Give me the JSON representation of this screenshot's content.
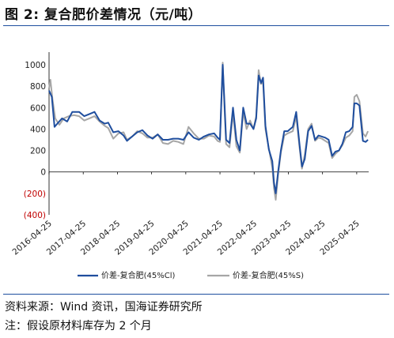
{
  "figure": {
    "title": "图 2:  复合肥价差情况（元/吨）",
    "source": "资料来源：Wind 资讯，国海证券研究所",
    "note": "注：假设原材料库存为 2 个月"
  },
  "colors": {
    "series1": "#1f4e9e",
    "series2": "#a6a6a6",
    "negative_tick": "#c00000",
    "rule": "#1d4e9e"
  },
  "chart_data": {
    "type": "line",
    "title": "",
    "xlabel": "",
    "ylabel": "",
    "ylim": [
      -400,
      1000
    ],
    "yticks": [
      {
        "value": 1000,
        "label": "1000"
      },
      {
        "value": 800,
        "label": "800"
      },
      {
        "value": 600,
        "label": "600"
      },
      {
        "value": 400,
        "label": "400"
      },
      {
        "value": 200,
        "label": "200"
      },
      {
        "value": 0,
        "label": "0"
      },
      {
        "value": -200,
        "label": "(200)"
      },
      {
        "value": -400,
        "label": "(400)"
      }
    ],
    "xlim": [
      2016.32,
      2025.67
    ],
    "xticks": [
      {
        "value": 2016.32,
        "label": "2016-04-25"
      },
      {
        "value": 2017.32,
        "label": "2017-04-25"
      },
      {
        "value": 2018.32,
        "label": "2018-04-25"
      },
      {
        "value": 2019.32,
        "label": "2019-04-25"
      },
      {
        "value": 2020.32,
        "label": "2020-04-25"
      },
      {
        "value": 2021.32,
        "label": "2021-04-25"
      },
      {
        "value": 2022.32,
        "label": "2022-04-25"
      },
      {
        "value": 2023.32,
        "label": "2023-04-25"
      },
      {
        "value": 2024.32,
        "label": "2024-04-25"
      },
      {
        "value": 2025.32,
        "label": "2025-04-25"
      }
    ],
    "legend_position": "bottom",
    "series": [
      {
        "name": "价差-复合肥(45%Cl)",
        "points": [
          [
            2016.32,
            760
          ],
          [
            2016.4,
            700
          ],
          [
            2016.48,
            420
          ],
          [
            2016.56,
            450
          ],
          [
            2016.7,
            500
          ],
          [
            2016.85,
            470
          ],
          [
            2017.0,
            560
          ],
          [
            2017.2,
            560
          ],
          [
            2017.35,
            520
          ],
          [
            2017.5,
            540
          ],
          [
            2017.65,
            560
          ],
          [
            2017.8,
            480
          ],
          [
            2017.95,
            450
          ],
          [
            2018.05,
            460
          ],
          [
            2018.2,
            370
          ],
          [
            2018.35,
            380
          ],
          [
            2018.5,
            340
          ],
          [
            2018.6,
            290
          ],
          [
            2018.75,
            330
          ],
          [
            2018.9,
            370
          ],
          [
            2019.05,
            390
          ],
          [
            2019.2,
            340
          ],
          [
            2019.35,
            310
          ],
          [
            2019.5,
            350
          ],
          [
            2019.65,
            300
          ],
          [
            2019.8,
            300
          ],
          [
            2019.95,
            310
          ],
          [
            2020.1,
            310
          ],
          [
            2020.25,
            300
          ],
          [
            2020.4,
            370
          ],
          [
            2020.55,
            320
          ],
          [
            2020.7,
            300
          ],
          [
            2020.85,
            330
          ],
          [
            2021.0,
            350
          ],
          [
            2021.15,
            360
          ],
          [
            2021.25,
            320
          ],
          [
            2021.32,
            300
          ],
          [
            2021.4,
            1000
          ],
          [
            2021.45,
            650
          ],
          [
            2021.5,
            300
          ],
          [
            2021.6,
            270
          ],
          [
            2021.7,
            600
          ],
          [
            2021.8,
            300
          ],
          [
            2021.9,
            200
          ],
          [
            2022.0,
            600
          ],
          [
            2022.1,
            450
          ],
          [
            2022.2,
            450
          ],
          [
            2022.3,
            400
          ],
          [
            2022.38,
            500
          ],
          [
            2022.45,
            900
          ],
          [
            2022.52,
            830
          ],
          [
            2022.58,
            880
          ],
          [
            2022.65,
            430
          ],
          [
            2022.75,
            210
          ],
          [
            2022.85,
            100
          ],
          [
            2022.9,
            -100
          ],
          [
            2022.95,
            -200
          ],
          [
            2023.02,
            0
          ],
          [
            2023.1,
            200
          ],
          [
            2023.2,
            380
          ],
          [
            2023.3,
            380
          ],
          [
            2023.45,
            420
          ],
          [
            2023.55,
            560
          ],
          [
            2023.65,
            250
          ],
          [
            2023.72,
            50
          ],
          [
            2023.8,
            120
          ],
          [
            2023.9,
            380
          ],
          [
            2024.0,
            430
          ],
          [
            2024.1,
            300
          ],
          [
            2024.2,
            340
          ],
          [
            2024.3,
            330
          ],
          [
            2024.4,
            320
          ],
          [
            2024.5,
            300
          ],
          [
            2024.6,
            150
          ],
          [
            2024.7,
            190
          ],
          [
            2024.8,
            200
          ],
          [
            2024.9,
            260
          ],
          [
            2025.0,
            370
          ],
          [
            2025.1,
            380
          ],
          [
            2025.2,
            420
          ],
          [
            2025.25,
            640
          ],
          [
            2025.32,
            640
          ],
          [
            2025.4,
            620
          ],
          [
            2025.5,
            290
          ],
          [
            2025.58,
            280
          ],
          [
            2025.65,
            300
          ]
        ]
      },
      {
        "name": "价差-复合肥(45%S)",
        "points": [
          [
            2016.32,
            780
          ],
          [
            2016.36,
            860
          ],
          [
            2016.42,
            680
          ],
          [
            2016.5,
            500
          ],
          [
            2016.62,
            440
          ],
          [
            2016.75,
            500
          ],
          [
            2016.9,
            520
          ],
          [
            2017.05,
            530
          ],
          [
            2017.2,
            520
          ],
          [
            2017.35,
            480
          ],
          [
            2017.5,
            500
          ],
          [
            2017.65,
            520
          ],
          [
            2017.8,
            470
          ],
          [
            2017.95,
            430
          ],
          [
            2018.05,
            410
          ],
          [
            2018.2,
            310
          ],
          [
            2018.35,
            360
          ],
          [
            2018.5,
            370
          ],
          [
            2018.6,
            300
          ],
          [
            2018.75,
            330
          ],
          [
            2018.9,
            380
          ],
          [
            2019.05,
            360
          ],
          [
            2019.2,
            320
          ],
          [
            2019.35,
            320
          ],
          [
            2019.5,
            350
          ],
          [
            2019.65,
            270
          ],
          [
            2019.8,
            260
          ],
          [
            2019.95,
            290
          ],
          [
            2020.1,
            280
          ],
          [
            2020.25,
            260
          ],
          [
            2020.4,
            420
          ],
          [
            2020.55,
            360
          ],
          [
            2020.7,
            310
          ],
          [
            2020.85,
            310
          ],
          [
            2021.0,
            340
          ],
          [
            2021.15,
            330
          ],
          [
            2021.25,
            290
          ],
          [
            2021.32,
            280
          ],
          [
            2021.4,
            1020
          ],
          [
            2021.45,
            600
          ],
          [
            2021.5,
            260
          ],
          [
            2021.6,
            230
          ],
          [
            2021.7,
            550
          ],
          [
            2021.8,
            240
          ],
          [
            2021.9,
            180
          ],
          [
            2022.0,
            560
          ],
          [
            2022.1,
            400
          ],
          [
            2022.2,
            480
          ],
          [
            2022.3,
            400
          ],
          [
            2022.38,
            520
          ],
          [
            2022.45,
            950
          ],
          [
            2022.52,
            820
          ],
          [
            2022.58,
            840
          ],
          [
            2022.65,
            400
          ],
          [
            2022.75,
            220
          ],
          [
            2022.85,
            40
          ],
          [
            2022.9,
            -150
          ],
          [
            2022.95,
            -260
          ],
          [
            2023.02,
            -30
          ],
          [
            2023.1,
            180
          ],
          [
            2023.2,
            340
          ],
          [
            2023.3,
            360
          ],
          [
            2023.45,
            380
          ],
          [
            2023.55,
            520
          ],
          [
            2023.65,
            220
          ],
          [
            2023.72,
            30
          ],
          [
            2023.8,
            160
          ],
          [
            2023.9,
            400
          ],
          [
            2024.0,
            450
          ],
          [
            2024.1,
            290
          ],
          [
            2024.2,
            320
          ],
          [
            2024.3,
            310
          ],
          [
            2024.4,
            290
          ],
          [
            2024.5,
            270
          ],
          [
            2024.6,
            130
          ],
          [
            2024.7,
            170
          ],
          [
            2024.8,
            200
          ],
          [
            2024.9,
            250
          ],
          [
            2025.0,
            320
          ],
          [
            2025.1,
            340
          ],
          [
            2025.2,
            380
          ],
          [
            2025.25,
            700
          ],
          [
            2025.32,
            720
          ],
          [
            2025.4,
            660
          ],
          [
            2025.5,
            360
          ],
          [
            2025.58,
            330
          ],
          [
            2025.65,
            380
          ]
        ]
      }
    ]
  }
}
